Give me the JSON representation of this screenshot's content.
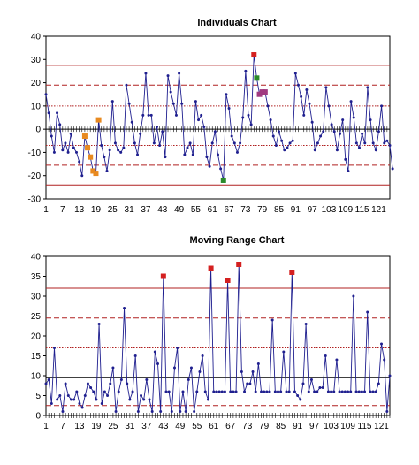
{
  "colors": {
    "series_line": "#1f1f8f",
    "series_point": "#1f1f8f",
    "limit_line": "#b02020",
    "ooc_red": "#d42020",
    "ooc_green": "#2a8a2a",
    "ooc_orange": "#e88a20",
    "ooc_purple": "#a03a80"
  },
  "chart_data": [
    {
      "type": "line",
      "title": "Individuals Chart",
      "xlabel": "",
      "ylabel": "",
      "ylim": [
        -30,
        40
      ],
      "yticks": [
        -30,
        -20,
        -10,
        0,
        10,
        20,
        30,
        40
      ],
      "xlim": [
        1,
        125
      ],
      "xticks": [
        1,
        7,
        13,
        19,
        25,
        31,
        37,
        43,
        49,
        55,
        61,
        67,
        73,
        79,
        85,
        91,
        97,
        103,
        109,
        115,
        121
      ],
      "control_limits": [
        {
          "value": 27.5,
          "style": "solid"
        },
        {
          "value": 19,
          "style": "dashed"
        },
        {
          "value": 10,
          "style": "dotted"
        },
        {
          "value": -7,
          "style": "dotted"
        },
        {
          "value": -15.5,
          "style": "dashed"
        },
        {
          "value": -24,
          "style": "solid"
        }
      ],
      "center_line": 0,
      "values": [
        15,
        7,
        -3,
        -10,
        7,
        2,
        -9,
        -6,
        -10,
        -2,
        -8,
        -10,
        -14,
        -20,
        -3,
        -8,
        -12,
        -18,
        -19,
        4,
        -7,
        -12,
        -18,
        -9,
        12,
        -6,
        -9,
        -10,
        -8,
        19,
        11,
        3,
        -6,
        -11,
        -2,
        6,
        24,
        6,
        6,
        -6,
        1,
        -7,
        -1,
        -12,
        23,
        16,
        11,
        6,
        24,
        11,
        -11,
        -8,
        -6,
        -11,
        12,
        4,
        6,
        1,
        -12,
        -16,
        -6,
        -1,
        -11,
        -17,
        -22,
        15,
        9,
        -3,
        -6,
        -10,
        -6,
        5,
        25,
        6,
        2,
        32,
        22,
        15,
        16,
        16,
        10,
        4,
        -3,
        -7,
        -1,
        -5,
        -9,
        -8,
        -6,
        -5,
        24,
        19,
        14,
        6,
        17,
        11,
        3,
        -9,
        -6,
        -3,
        -1,
        18,
        10,
        2,
        -1,
        -9,
        -2,
        4,
        -13,
        -18,
        12,
        5,
        -6,
        -8,
        -2,
        -6,
        18,
        4,
        -6,
        -9,
        -1,
        10,
        -6,
        -5,
        -7,
        -17
      ],
      "highlighted_points": [
        {
          "index": 14,
          "color": "ooc_orange"
        },
        {
          "index": 15,
          "color": "ooc_orange"
        },
        {
          "index": 16,
          "color": "ooc_orange"
        },
        {
          "index": 17,
          "color": "ooc_orange"
        },
        {
          "index": 18,
          "color": "ooc_orange"
        },
        {
          "index": 19,
          "color": "ooc_orange"
        },
        {
          "index": 64,
          "color": "ooc_green"
        },
        {
          "index": 75,
          "color": "ooc_red"
        },
        {
          "index": 76,
          "color": "ooc_green"
        },
        {
          "index": 77,
          "color": "ooc_purple"
        },
        {
          "index": 78,
          "color": "ooc_purple"
        },
        {
          "index": 79,
          "color": "ooc_purple"
        }
      ]
    },
    {
      "type": "line",
      "title": "Moving Range Chart",
      "xlabel": "",
      "ylabel": "",
      "ylim": [
        0,
        40
      ],
      "yticks": [
        0,
        5,
        10,
        15,
        20,
        25,
        30,
        35,
        40
      ],
      "xlim": [
        1,
        124
      ],
      "xticks": [
        1,
        7,
        13,
        19,
        25,
        31,
        37,
        43,
        49,
        55,
        61,
        67,
        73,
        79,
        85,
        91,
        97,
        103,
        109,
        115,
        121
      ],
      "control_limits": [
        {
          "value": 32,
          "style": "solid"
        },
        {
          "value": 24.5,
          "style": "dashed"
        },
        {
          "value": 17,
          "style": "dotted"
        },
        {
          "value": 2.5,
          "style": "dashed"
        }
      ],
      "center_line": 9.5,
      "values": [
        8,
        9,
        3,
        17,
        4,
        5,
        1,
        8,
        5,
        4,
        4,
        6,
        3,
        2,
        5,
        8,
        7,
        6,
        4,
        23,
        3,
        6,
        5,
        8,
        12,
        1,
        6,
        9,
        27,
        8,
        4,
        6,
        15,
        1,
        5,
        4,
        9,
        4,
        1,
        16,
        13,
        1,
        35,
        6,
        6,
        1,
        12,
        17,
        1,
        6,
        1,
        9,
        12,
        1,
        6,
        11,
        15,
        6,
        4,
        37,
        6,
        6,
        6,
        6,
        6,
        34,
        6,
        6,
        6,
        38,
        11,
        6,
        8,
        8,
        11,
        6,
        13,
        6,
        6,
        6,
        6,
        24,
        6,
        6,
        6,
        16,
        6,
        6,
        36,
        6,
        5,
        4,
        8,
        23,
        6,
        9,
        6,
        6,
        7,
        7,
        15,
        6,
        6,
        6,
        14,
        6,
        6,
        6,
        6,
        6,
        30,
        6,
        6,
        6,
        6,
        26,
        6,
        6,
        6,
        8,
        18,
        14,
        1,
        10
      ],
      "highlighted_points": [
        {
          "index": 42,
          "color": "ooc_red"
        },
        {
          "index": 59,
          "color": "ooc_red"
        },
        {
          "index": 65,
          "color": "ooc_red"
        },
        {
          "index": 69,
          "color": "ooc_red"
        },
        {
          "index": 88,
          "color": "ooc_red"
        }
      ]
    }
  ]
}
